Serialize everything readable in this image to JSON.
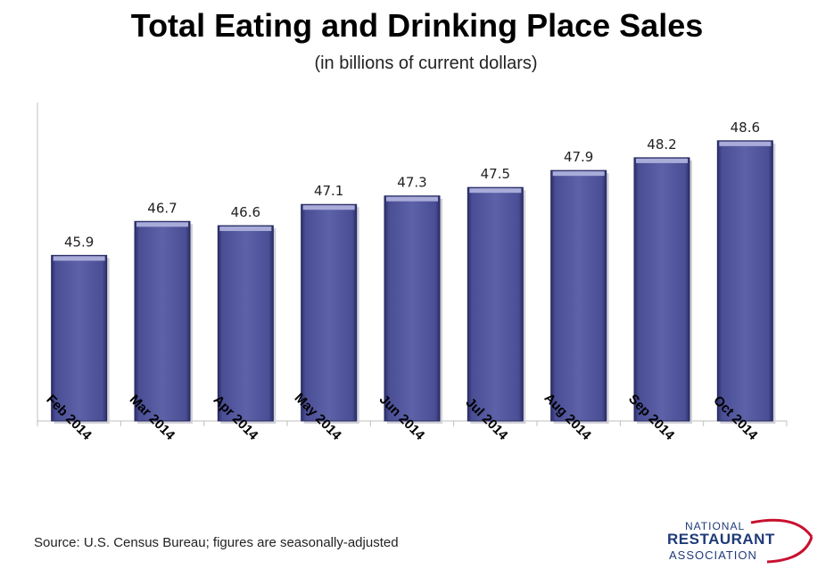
{
  "chart_data": {
    "type": "bar",
    "title": "Total Eating and Drinking Place Sales",
    "subtitle": "(in billions of current dollars)",
    "categories": [
      "Feb 2014",
      "Mar 2014",
      "Apr 2014",
      "May 2014",
      "Jun 2014",
      "Jul 2014",
      "Aug 2014",
      "Sep 2014",
      "Oct 2014"
    ],
    "values": [
      45.9,
      46.7,
      46.6,
      47.1,
      47.3,
      47.5,
      47.9,
      48.2,
      48.6
    ],
    "data_labels": [
      "45.9",
      "46.7",
      "46.6",
      "47.1",
      "47.3",
      "47.5",
      "47.9",
      "48.2",
      "48.6"
    ],
    "xlabel": "",
    "ylabel": "",
    "ylim": [
      42,
      49.5
    ],
    "grid": false,
    "bar_color": "#5b5fa3"
  },
  "source": "Source: U.S. Census Bureau; figures are seasonally-adjusted",
  "logo": {
    "line1": "NATIONAL",
    "line2": "RESTAURANT",
    "line3": "ASSOCIATION"
  },
  "colors": {
    "logo_blue": "#1e3a78",
    "logo_red": "#c8102e"
  }
}
